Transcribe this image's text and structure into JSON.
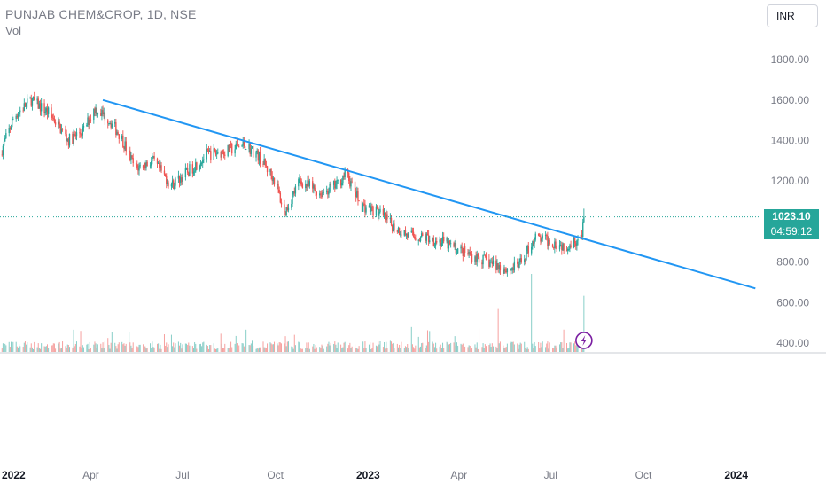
{
  "header": {
    "symbol_line": "PUNJAB CHEM&CROP, 1D, NSE",
    "indicator_label": "Vol"
  },
  "currency_button": {
    "label": "INR"
  },
  "last_price": {
    "value": "1023.10",
    "countdown": "04:59:12"
  },
  "icons": {
    "flash": "lightning-bolt-icon"
  },
  "colors": {
    "up": "#26a69a",
    "down": "#ef5350",
    "trendline": "#2196f3",
    "axis_text": "#787b86",
    "flash_ring": "#7b1fa2"
  },
  "chart_data": {
    "type": "candlestick",
    "interval": "1D",
    "exchange": "NSE",
    "y_axis": {
      "ticks": [
        "1800.00",
        "1600.00",
        "1400.00",
        "1200.00",
        "800.00",
        "600.00",
        "400.00"
      ],
      "range": [
        390,
        1840
      ]
    },
    "x_axis": {
      "ticks": [
        {
          "label": "2022",
          "date": "2022-01-01"
        },
        {
          "label": "Apr",
          "date": "2022-04-01"
        },
        {
          "label": "Jul",
          "date": "2022-07-01"
        },
        {
          "label": "Oct",
          "date": "2022-10-01"
        },
        {
          "label": "2023",
          "date": "2023-01-01"
        },
        {
          "label": "Apr",
          "date": "2023-04-01"
        },
        {
          "label": "Jul",
          "date": "2023-07-01"
        },
        {
          "label": "Oct",
          "date": "2023-10-01"
        },
        {
          "label": "2024",
          "date": "2024-01-01"
        }
      ],
      "range": [
        "2022-01-01",
        "2024-01-25"
      ]
    },
    "price_path": [
      [
        "2022-01-01",
        1330
      ],
      [
        "2022-01-15",
        1520
      ],
      [
        "2022-02-01",
        1600
      ],
      [
        "2022-02-20",
        1530
      ],
      [
        "2022-03-10",
        1400
      ],
      [
        "2022-03-25",
        1450
      ],
      [
        "2022-04-05",
        1560
      ],
      [
        "2022-04-18",
        1510
      ],
      [
        "2022-05-01",
        1420
      ],
      [
        "2022-05-15",
        1260
      ],
      [
        "2022-06-01",
        1300
      ],
      [
        "2022-06-20",
        1180
      ],
      [
        "2022-07-05",
        1240
      ],
      [
        "2022-07-25",
        1330
      ],
      [
        "2022-08-15",
        1350
      ],
      [
        "2022-09-01",
        1380
      ],
      [
        "2022-09-15",
        1320
      ],
      [
        "2022-10-01",
        1200
      ],
      [
        "2022-10-10",
        1040
      ],
      [
        "2022-10-25",
        1200
      ],
      [
        "2022-11-15",
        1140
      ],
      [
        "2022-12-01",
        1180
      ],
      [
        "2022-12-10",
        1240
      ],
      [
        "2022-12-25",
        1080
      ],
      [
        "2023-01-10",
        1050
      ],
      [
        "2023-01-25",
        980
      ],
      [
        "2023-02-10",
        930
      ],
      [
        "2023-03-01",
        920
      ],
      [
        "2023-03-15",
        900
      ],
      [
        "2023-04-01",
        860
      ],
      [
        "2023-04-20",
        820
      ],
      [
        "2023-05-05",
        790
      ],
      [
        "2023-05-20",
        760
      ],
      [
        "2023-06-01",
        790
      ],
      [
        "2023-06-15",
        920
      ],
      [
        "2023-07-01",
        900
      ],
      [
        "2023-07-15",
        880
      ],
      [
        "2023-08-01",
        920
      ],
      [
        "2023-08-03",
        1023
      ]
    ],
    "volume_spikes": [
      [
        "2023-05-10",
        0.55
      ],
      [
        "2023-06-12",
        1.0
      ],
      [
        "2023-08-03",
        0.72
      ]
    ],
    "trendline": {
      "from": [
        "2022-04-13",
        1600
      ],
      "to": [
        "2024-01-20",
        670
      ]
    },
    "last_close": 1023.1
  }
}
